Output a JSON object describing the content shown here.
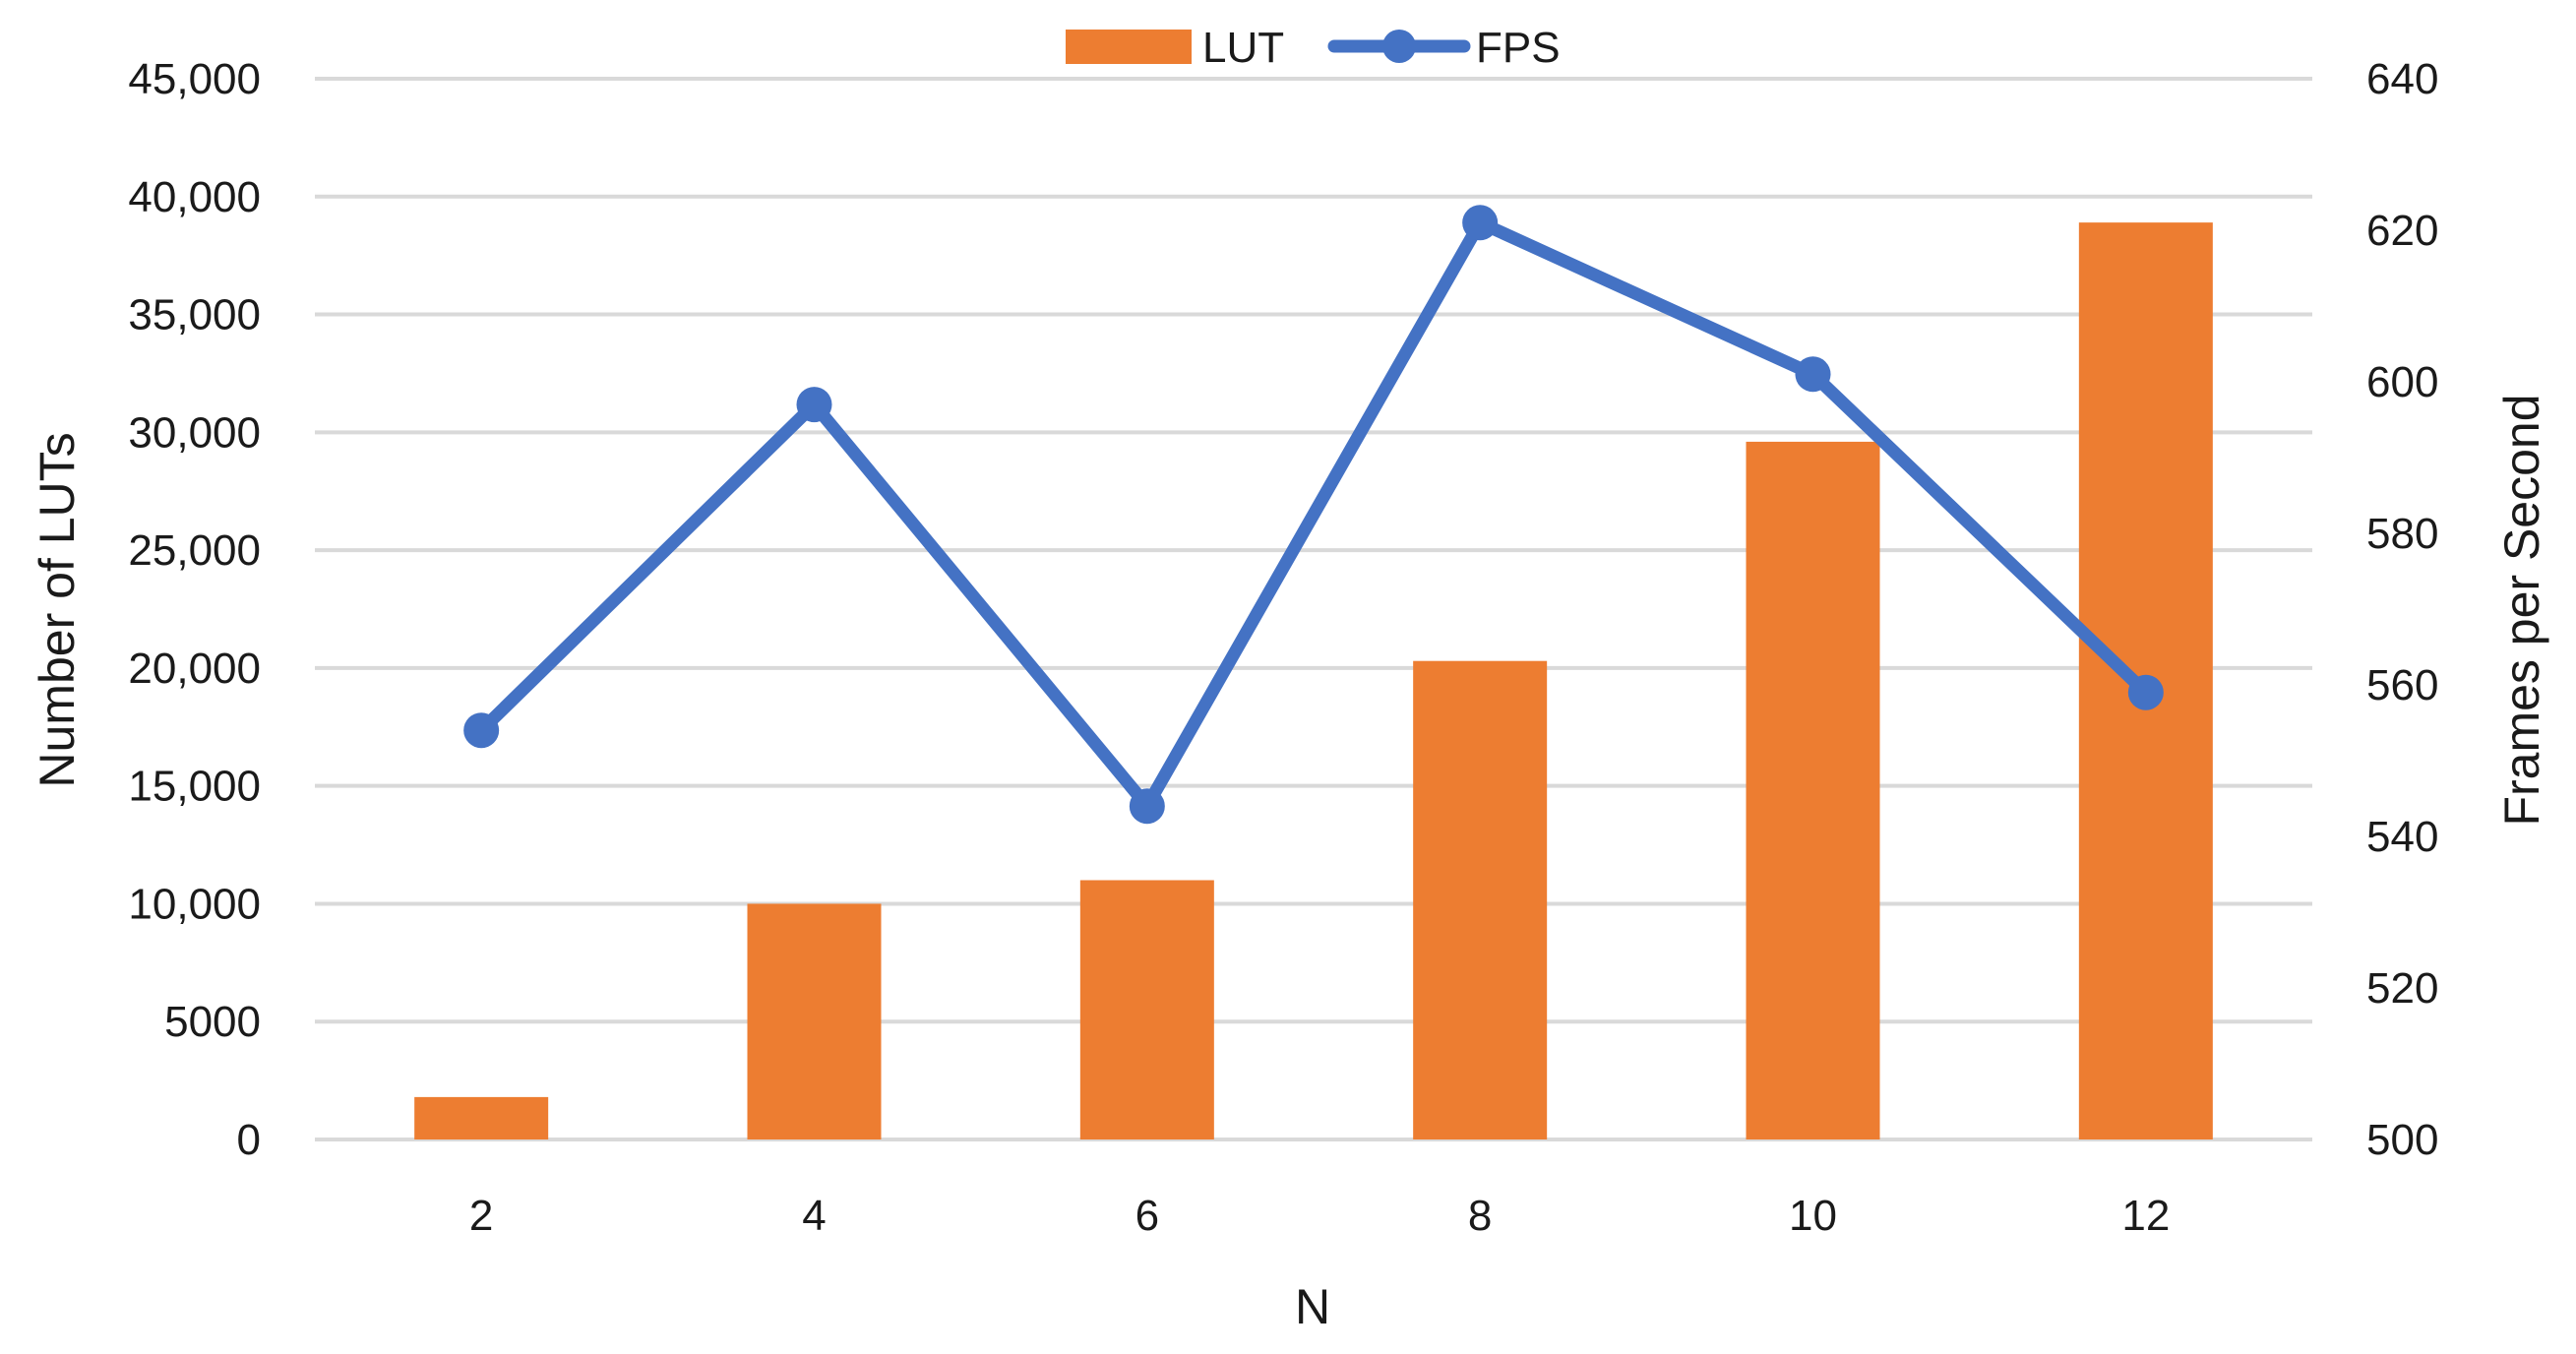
{
  "chart_data": {
    "type": "bar",
    "categories": [
      "2",
      "4",
      "6",
      "8",
      "10",
      "12"
    ],
    "series": [
      {
        "name": "LUT",
        "type": "bar",
        "axis": "left",
        "values": [
          1800,
          10000,
          11000,
          20300,
          29600,
          38900
        ]
      },
      {
        "name": "FPS",
        "type": "line",
        "axis": "right",
        "values": [
          554,
          597,
          544,
          621,
          601,
          559
        ]
      }
    ],
    "xlabel": "N",
    "ylabel": "Number of LUTs",
    "y2label": "Frames per Second",
    "ylim": [
      0,
      45000
    ],
    "y2lim": [
      500,
      640
    ],
    "yticks": [
      "0",
      "5000",
      "10,000",
      "15,000",
      "20,000",
      "25,000",
      "30,000",
      "35,000",
      "40,000",
      "45,000"
    ],
    "y2ticks": [
      "500",
      "520",
      "540",
      "560",
      "580",
      "600",
      "620",
      "640"
    ],
    "grid": true,
    "legend_position": "top-center",
    "colors": {
      "LUT": "#ED7D31",
      "FPS": "#4472C4",
      "grid": "#D9D9D9"
    }
  }
}
